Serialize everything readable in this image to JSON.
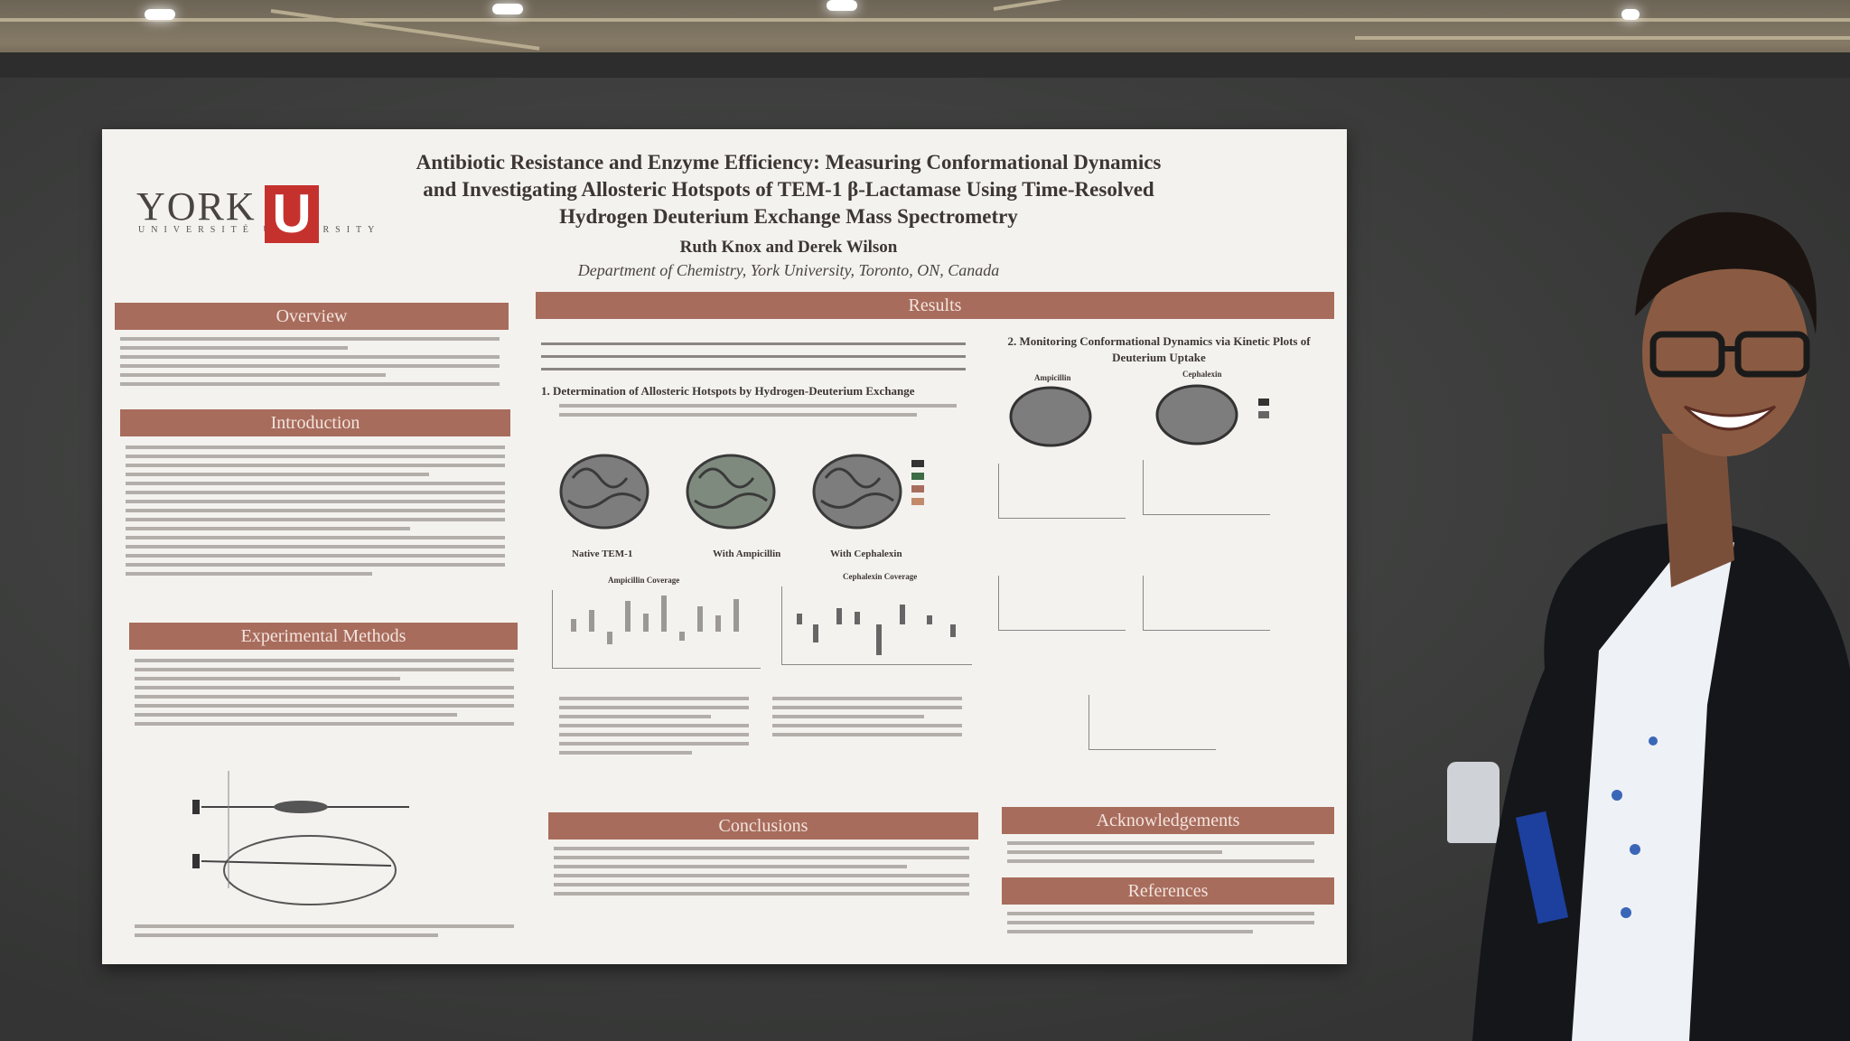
{
  "poster": {
    "logo": {
      "wordmark": "YORK",
      "sub": "UNIVERSITÉ UNIVERSITY",
      "mark": "U"
    },
    "title_lines": [
      "Antibiotic Resistance and Enzyme Efficiency: Measuring Conformational Dynamics",
      "and Investigating Allosteric Hotspots of TEM-1 β-Lactamase Using Time-Resolved",
      "Hydrogen Deuterium Exchange Mass Spectrometry"
    ],
    "authors": "Ruth Knox and Derek Wilson",
    "department": "Department of Chemistry, York University, Toronto, ON, Canada",
    "sections": {
      "overview": "Overview",
      "introduction": "Introduction",
      "methods": "Experimental Methods",
      "results": "Results",
      "conclusions": "Conclusions",
      "acknowledgements": "Acknowledgements",
      "references": "References"
    },
    "result_headings": {
      "one": "1. Determination of Allosteric Hotspots by Hydrogen-Deuterium Exchange",
      "two": "2. Monitoring Conformational Dynamics via Kinetic Plots of Deuterium Uptake"
    },
    "protein_labels": [
      "Native TEM-1",
      "With Ampicillin",
      "With Cephalexin"
    ],
    "coverage_titles": [
      "Ampicillin Coverage",
      "Cephalexin Coverage"
    ],
    "kinetic_labels": [
      "Ampicillin",
      "Cephalexin"
    ]
  },
  "colors": {
    "band": "#a86c5c",
    "york_red": "#c5322e",
    "backdrop": "#3f403f"
  }
}
